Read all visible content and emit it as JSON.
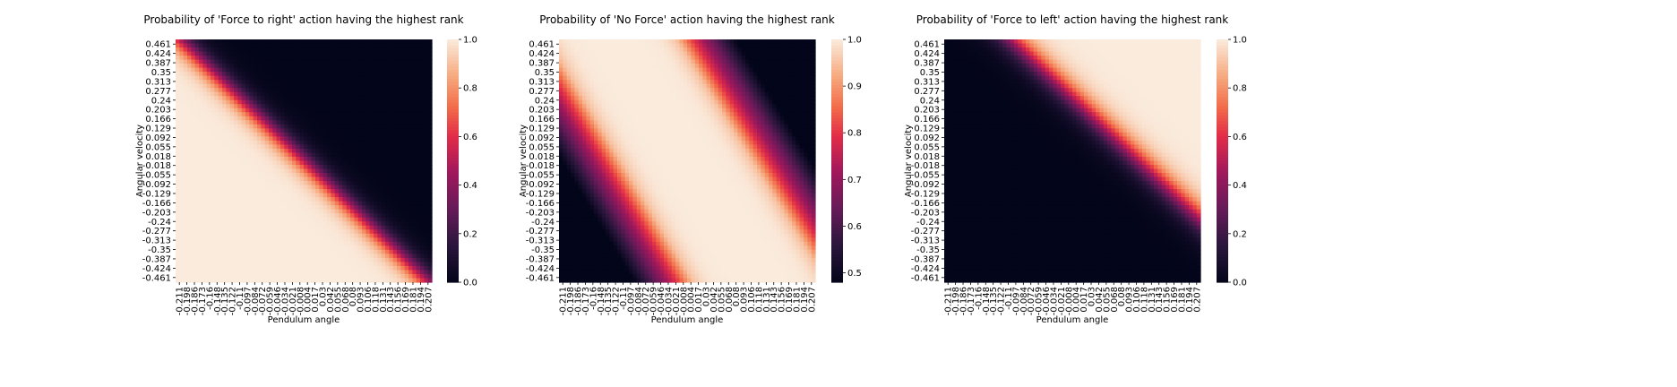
{
  "chart_data": [
    {
      "type": "heatmap",
      "title": "Probability of 'Force to right' action having the highest rank",
      "xlabel": "Pendulum angle",
      "ylabel": "Angular velocity",
      "x_ticks": [
        "-0.211",
        "-0.198",
        "-0.186",
        "-0.173",
        "-0.16",
        "-0.148",
        "-0.135",
        "-0.122",
        "-0.11",
        "-0.097",
        "-0.084",
        "-0.072",
        "-0.059",
        "-0.046",
        "-0.034",
        "-0.021",
        "-0.008",
        "0.004",
        "0.017",
        "0.03",
        "0.042",
        "0.055",
        "0.068",
        "0.08",
        "0.093",
        "0.106",
        "0.118",
        "0.131",
        "0.143",
        "0.156",
        "0.169",
        "0.181",
        "0.194",
        "0.207"
      ],
      "y_ticks": [
        "0.461",
        "0.424",
        "0.387",
        "0.35",
        "0.313",
        "0.277",
        "0.24",
        "0.203",
        "0.166",
        "0.129",
        "0.092",
        "0.055",
        "0.018",
        "-0.018",
        "-0.055",
        "-0.092",
        "-0.129",
        "-0.166",
        "-0.203",
        "-0.24",
        "-0.277",
        "-0.313",
        "-0.35",
        "-0.387",
        "-0.424",
        "-0.461"
      ],
      "x_range": [
        -0.211,
        0.207
      ],
      "y_range": [
        0.461,
        -0.461
      ],
      "colorbar": {
        "min": 0.0,
        "max": 1.0,
        "ticks": [
          "0.0",
          "0.2",
          "0.4",
          "0.6",
          "0.8",
          "1.0"
        ]
      },
      "pattern": "diagonal band: value 1.0 in lower-left region, 0.0 in upper-right region",
      "boundary": {
        "intercept_at_y_max": -0.205,
        "slope_dx_per_dy": -0.44,
        "transition_width": 0.06
      },
      "high_side": "left"
    },
    {
      "type": "heatmap",
      "title": "Probability of 'No Force' action having the highest rank",
      "xlabel": "Pendulum angle",
      "ylabel": "Angular velocity",
      "x_ticks": [
        "-0.211",
        "-0.198",
        "-0.186",
        "-0.173",
        "-0.16",
        "-0.148",
        "-0.135",
        "-0.122",
        "-0.11",
        "-0.097",
        "-0.084",
        "-0.072",
        "-0.059",
        "-0.046",
        "-0.034",
        "-0.021",
        "-0.008",
        "0.004",
        "0.017",
        "0.03",
        "0.042",
        "0.055",
        "0.068",
        "0.08",
        "0.093",
        "0.106",
        "0.118",
        "0.131",
        "0.143",
        "0.156",
        "0.169",
        "0.181",
        "0.194",
        "0.207"
      ],
      "y_ticks": [
        "0.461",
        "0.424",
        "0.387",
        "0.35",
        "0.313",
        "0.277",
        "0.24",
        "0.203",
        "0.166",
        "0.129",
        "0.092",
        "0.055",
        "0.018",
        "-0.018",
        "-0.055",
        "-0.092",
        "-0.129",
        "-0.166",
        "-0.203",
        "-0.24",
        "-0.277",
        "-0.313",
        "-0.35",
        "-0.387",
        "-0.424",
        "-0.461"
      ],
      "x_range": [
        -0.211,
        0.207
      ],
      "y_range": [
        0.461,
        -0.461
      ],
      "colorbar": {
        "min": 0.48,
        "max": 1.0,
        "ticks": [
          "0.5",
          "0.6",
          "0.7",
          "0.8",
          "0.9",
          "1.0"
        ]
      },
      "pattern": "diagonal band of value 1.0 between two diagonal regions of lower value (~0.5)",
      "boundary_left": {
        "x_at_y_max": -0.228,
        "x_at_y_min": 0.009
      },
      "boundary_right": {
        "x_at_y_max": -0.02,
        "x_at_y_min": 0.225
      }
    },
    {
      "type": "heatmap",
      "title": "Probability of 'Force to left' action having the highest rank",
      "xlabel": "Pendulum angle",
      "ylabel": "Angular velocity",
      "x_ticks": [
        "-0.211",
        "-0.198",
        "-0.186",
        "-0.173",
        "-0.16",
        "-0.148",
        "-0.135",
        "-0.122",
        "-0.11",
        "-0.097",
        "-0.084",
        "-0.072",
        "-0.059",
        "-0.046",
        "-0.034",
        "-0.021",
        "-0.008",
        "0.004",
        "0.017",
        "0.03",
        "0.042",
        "0.055",
        "0.068",
        "0.08",
        "0.093",
        "0.106",
        "0.118",
        "0.131",
        "0.143",
        "0.156",
        "0.169",
        "0.181",
        "0.194",
        "0.207"
      ],
      "y_ticks": [
        "0.461",
        "0.424",
        "0.387",
        "0.35",
        "0.313",
        "0.277",
        "0.24",
        "0.203",
        "0.166",
        "0.129",
        "0.092",
        "0.055",
        "0.018",
        "-0.018",
        "-0.055",
        "-0.092",
        "-0.129",
        "-0.166",
        "-0.203",
        "-0.24",
        "-0.277",
        "-0.313",
        "-0.35",
        "-0.387",
        "-0.424",
        "-0.461"
      ],
      "x_range": [
        -0.211,
        0.207
      ],
      "y_range": [
        0.461,
        -0.461
      ],
      "colorbar": {
        "min": 0.0,
        "max": 1.0,
        "ticks": [
          "0.0",
          "0.2",
          "0.4",
          "0.6",
          "0.8",
          "1.0"
        ]
      },
      "pattern": "diagonal band: value 0.0 in lower-left region, 1.0 in upper-right region",
      "boundary": {
        "intercept_at_y_max": -0.1,
        "slope_dx_per_dy": -0.45,
        "transition_width": 0.07
      },
      "high_side": "right"
    }
  ]
}
